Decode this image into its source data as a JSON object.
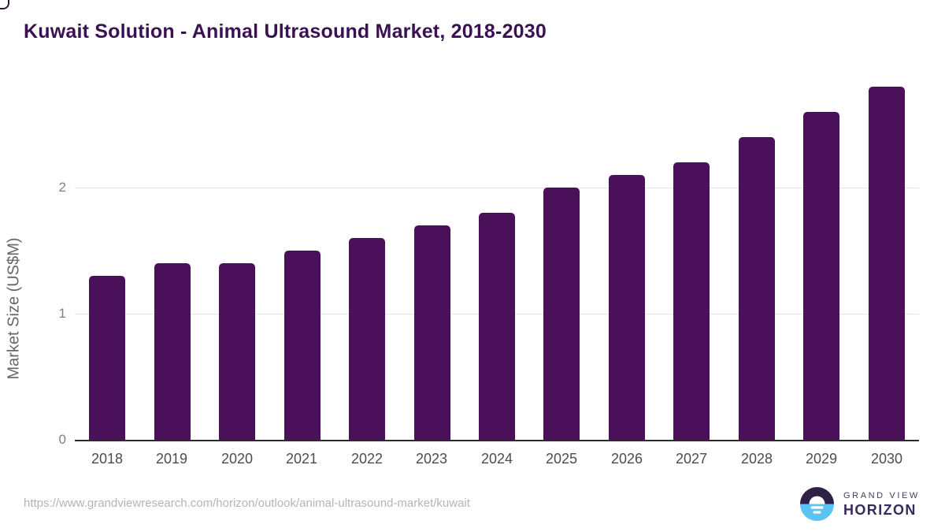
{
  "title": "Kuwait Solution - Animal Ultrasound Market, 2018-2030",
  "source_url": "https://www.grandviewresearch.com/horizon/outlook/animal-ultrasound-market/kuwait",
  "logo": {
    "line1": "GRAND VIEW",
    "line2": "HORIZON",
    "icon": "horizon-sun-over-water-icon"
  },
  "colors": {
    "bar": "#4a115a",
    "title": "#3a1253",
    "gridline": "#e4e4e4",
    "axis_line": "#2b2b2b",
    "tick_label": "#808080",
    "x_label": "#4d4d4d",
    "y_axis_label": "#666666",
    "url_text": "#b5b5b5",
    "logo_dark": "#2f2145",
    "logo_blue": "#5ac3f2",
    "logo_text1": "#43425d",
    "logo_text2": "#362a5e"
  },
  "chart_data": {
    "type": "bar",
    "title": "Kuwait Solution - Animal Ultrasound Market, 2018-2030",
    "categories": [
      "2018",
      "2019",
      "2020",
      "2021",
      "2022",
      "2023",
      "2024",
      "2025",
      "2026",
      "2027",
      "2028",
      "2029",
      "2030"
    ],
    "values": [
      1.3,
      1.4,
      1.4,
      1.5,
      1.6,
      1.7,
      1.8,
      2.0,
      2.1,
      2.2,
      2.4,
      2.6,
      2.8
    ],
    "xlabel": "",
    "ylabel": "Market Size (US$M)",
    "ylim": [
      0,
      2.8
    ],
    "y_ticks": [
      0,
      1,
      2
    ],
    "grid": "horizontal-only",
    "legend": "none",
    "bar_color": "#4a115a"
  }
}
